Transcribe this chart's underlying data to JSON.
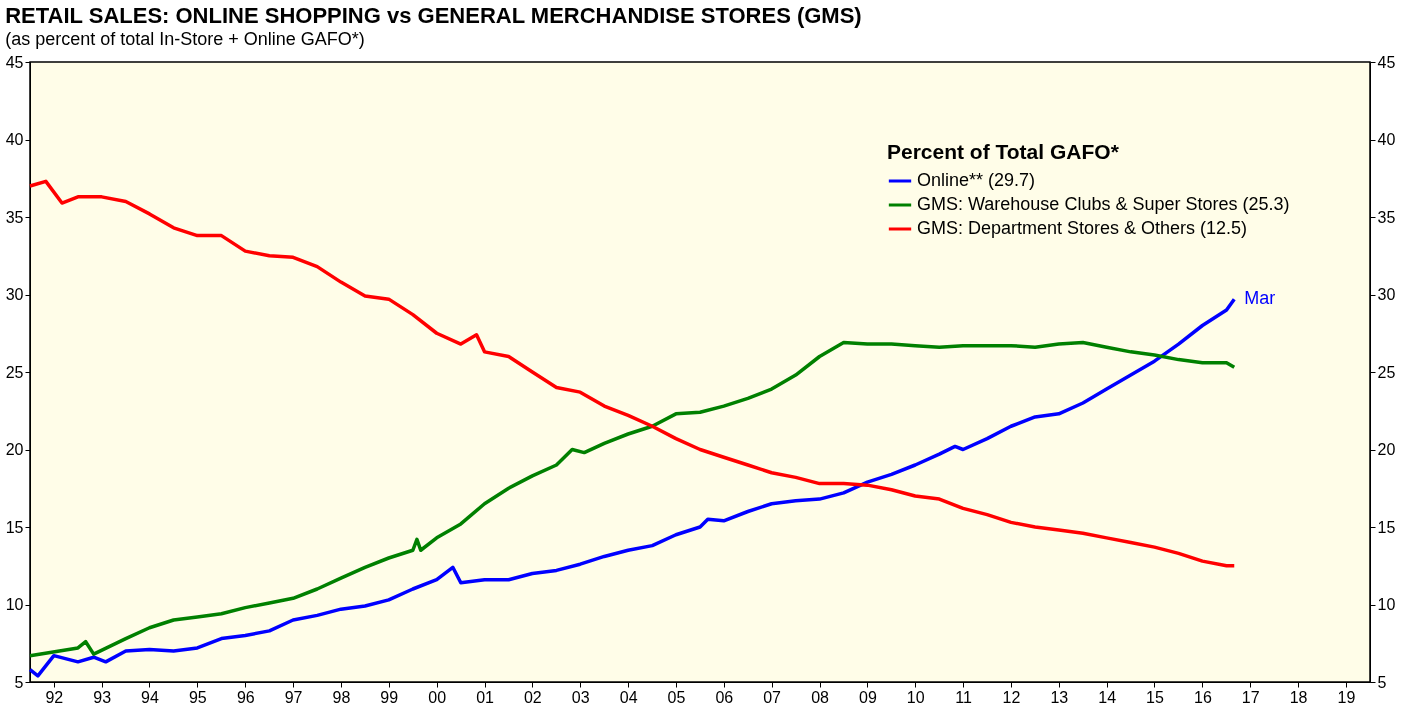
{
  "chart_data": {
    "type": "line",
    "title": "RETAIL SALES: ONLINE SHOPPING vs GENERAL MERCHANDISE STORES (GMS)",
    "subtitle": "(as percent of total In-Store + Online GAFO*)",
    "legend_title": "Percent of Total GAFO*",
    "legend": "top right",
    "grid": false,
    "marker": "none",
    "line_style": "solid",
    "xlim": [
      "1992-01",
      "2020-01"
    ],
    "xticks": [
      {
        "value": "1992-07",
        "label": "92"
      },
      {
        "value": "1993-07",
        "label": "93"
      },
      {
        "value": "1994-07",
        "label": "94"
      },
      {
        "value": "1995-07",
        "label": "95"
      },
      {
        "value": "1996-07",
        "label": "96"
      },
      {
        "value": "1997-07",
        "label": "97"
      },
      {
        "value": "1998-07",
        "label": "98"
      },
      {
        "value": "1999-07",
        "label": "99"
      },
      {
        "value": "2000-07",
        "label": "00"
      },
      {
        "value": "2001-07",
        "label": "01"
      },
      {
        "value": "2002-07",
        "label": "02"
      },
      {
        "value": "2003-07",
        "label": "03"
      },
      {
        "value": "2004-07",
        "label": "04"
      },
      {
        "value": "2005-07",
        "label": "05"
      },
      {
        "value": "2006-07",
        "label": "06"
      },
      {
        "value": "2007-07",
        "label": "07"
      },
      {
        "value": "2008-07",
        "label": "08"
      },
      {
        "value": "2009-07",
        "label": "09"
      },
      {
        "value": "2010-07",
        "label": "10"
      },
      {
        "value": "2011-07",
        "label": "11"
      },
      {
        "value": "2012-07",
        "label": "12"
      },
      {
        "value": "2013-07",
        "label": "13"
      },
      {
        "value": "2014-07",
        "label": "14"
      },
      {
        "value": "2015-07",
        "label": "15"
      },
      {
        "value": "2016-07",
        "label": "16"
      },
      {
        "value": "2017-07",
        "label": "17"
      },
      {
        "value": "2018-07",
        "label": "18"
      },
      {
        "value": "2019-07",
        "label": "19"
      }
    ],
    "ylim": [
      5,
      45
    ],
    "yticks": [
      5,
      10,
      15,
      20,
      25,
      30,
      35,
      40,
      45
    ],
    "y2lim": [
      5,
      45
    ],
    "y2ticks": [
      5,
      10,
      15,
      20,
      25,
      30,
      35,
      40,
      45
    ],
    "annotations": [
      {
        "text": "Mar",
        "x": "2017-03",
        "y": 29.7
      }
    ],
    "series": [
      {
        "name": "Online** (29.7)",
        "color": "#0000ff",
        "x": [
          "1992-01",
          "1992-03",
          "1992-07",
          "1993-01",
          "1993-05",
          "1993-08",
          "1994-01",
          "1994-07",
          "1995-01",
          "1995-07",
          "1996-01",
          "1996-07",
          "1997-01",
          "1997-07",
          "1998-01",
          "1998-07",
          "1999-01",
          "1999-07",
          "2000-01",
          "2000-07",
          "2000-11",
          "2001-01",
          "2001-07",
          "2002-01",
          "2002-07",
          "2003-01",
          "2003-07",
          "2004-01",
          "2004-07",
          "2005-01",
          "2005-07",
          "2006-01",
          "2006-03",
          "2006-07",
          "2007-01",
          "2007-07",
          "2008-01",
          "2008-07",
          "2009-01",
          "2009-07",
          "2010-01",
          "2010-07",
          "2011-01",
          "2011-05",
          "2011-07",
          "2012-01",
          "2012-07",
          "2013-01",
          "2013-07",
          "2014-01",
          "2014-07",
          "2015-01",
          "2015-07",
          "2016-01",
          "2016-07",
          "2017-01",
          "2017-03"
        ],
        "values": [
          5.8,
          5.4,
          6.7,
          6.3,
          6.6,
          6.3,
          7.0,
          7.1,
          7.0,
          7.2,
          7.8,
          8.0,
          8.3,
          9.0,
          9.3,
          9.7,
          9.9,
          10.3,
          11.0,
          11.6,
          12.4,
          11.4,
          11.6,
          11.6,
          12.0,
          12.2,
          12.6,
          13.1,
          13.5,
          13.8,
          14.5,
          15.0,
          15.5,
          15.4,
          16.0,
          16.5,
          16.7,
          16.8,
          17.2,
          17.9,
          18.4,
          19.0,
          19.7,
          20.2,
          20.0,
          20.7,
          21.5,
          22.1,
          22.3,
          23.0,
          23.9,
          24.8,
          25.7,
          26.8,
          28.0,
          29.0,
          29.7
        ]
      },
      {
        "name": "GMS: Warehouse Clubs & Super Stores (25.3)",
        "color": "#008000",
        "x": [
          "1992-01",
          "1993-01",
          "1993-03",
          "1993-05",
          "1994-01",
          "1994-07",
          "1995-01",
          "1995-07",
          "1996-01",
          "1996-07",
          "1997-01",
          "1997-07",
          "1998-01",
          "1998-07",
          "1999-01",
          "1999-07",
          "2000-01",
          "2000-02",
          "2000-03",
          "2000-07",
          "2001-01",
          "2001-07",
          "2002-01",
          "2002-07",
          "2003-01",
          "2003-05",
          "2003-08",
          "2004-01",
          "2004-07",
          "2005-01",
          "2005-07",
          "2006-01",
          "2006-07",
          "2007-01",
          "2007-07",
          "2008-01",
          "2008-07",
          "2009-01",
          "2009-07",
          "2010-01",
          "2010-07",
          "2011-01",
          "2011-07",
          "2012-01",
          "2012-07",
          "2013-01",
          "2013-07",
          "2014-01",
          "2014-07",
          "2015-01",
          "2015-07",
          "2016-01",
          "2016-07",
          "2017-01",
          "2017-03"
        ],
        "values": [
          6.7,
          7.2,
          7.6,
          6.8,
          7.8,
          8.5,
          9.0,
          9.2,
          9.4,
          9.8,
          10.1,
          10.4,
          11.0,
          11.7,
          12.4,
          13.0,
          13.5,
          14.2,
          13.5,
          14.3,
          15.2,
          16.5,
          17.5,
          18.3,
          19.0,
          20.0,
          19.8,
          20.4,
          21.0,
          21.5,
          22.3,
          22.4,
          22.8,
          23.3,
          23.9,
          24.8,
          26.0,
          26.9,
          26.8,
          26.8,
          26.7,
          26.6,
          26.7,
          26.7,
          26.7,
          26.6,
          26.8,
          26.9,
          26.6,
          26.3,
          26.1,
          25.8,
          25.6,
          25.6,
          25.3
        ]
      },
      {
        "name": "GMS: Department Stores & Others (12.5)",
        "color": "#ff0000",
        "x": [
          "1992-01",
          "1992-05",
          "1992-09",
          "1993-01",
          "1993-07",
          "1994-01",
          "1994-07",
          "1995-01",
          "1995-07",
          "1996-01",
          "1996-07",
          "1997-01",
          "1997-07",
          "1998-01",
          "1998-07",
          "1999-01",
          "1999-07",
          "2000-01",
          "2000-07",
          "2001-01",
          "2001-05",
          "2001-07",
          "2002-01",
          "2002-07",
          "2003-01",
          "2003-07",
          "2004-01",
          "2004-07",
          "2005-01",
          "2005-07",
          "2006-01",
          "2006-07",
          "2007-01",
          "2007-07",
          "2008-01",
          "2008-07",
          "2009-01",
          "2009-07",
          "2010-01",
          "2010-07",
          "2011-01",
          "2011-07",
          "2012-01",
          "2012-07",
          "2013-01",
          "2013-07",
          "2014-01",
          "2014-07",
          "2015-01",
          "2015-07",
          "2016-01",
          "2016-07",
          "2017-01",
          "2017-03"
        ],
        "values": [
          37.0,
          37.3,
          35.9,
          36.3,
          36.3,
          36.0,
          35.2,
          34.3,
          33.8,
          33.8,
          32.8,
          32.5,
          32.4,
          31.8,
          30.8,
          29.9,
          29.7,
          28.7,
          27.5,
          26.8,
          27.4,
          26.3,
          26.0,
          25.0,
          24.0,
          23.7,
          22.8,
          22.2,
          21.5,
          20.7,
          20.0,
          19.5,
          19.0,
          18.5,
          18.2,
          17.8,
          17.8,
          17.7,
          17.4,
          17.0,
          16.8,
          16.2,
          15.8,
          15.3,
          15.0,
          14.8,
          14.6,
          14.3,
          14.0,
          13.7,
          13.3,
          12.8,
          12.5,
          12.5
        ]
      }
    ]
  }
}
